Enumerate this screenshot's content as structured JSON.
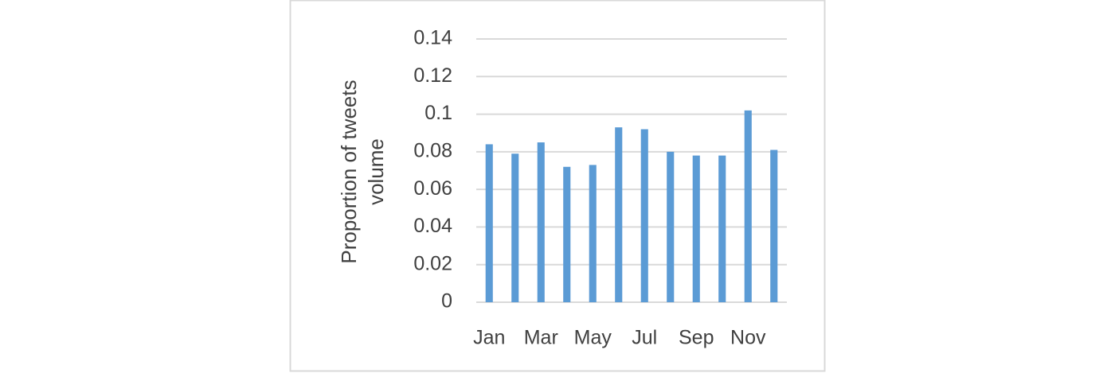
{
  "chart_data": {
    "type": "bar",
    "y_label": "Proportion of tweets volume",
    "categories": [
      "Jan",
      null,
      "Mar",
      null,
      "May",
      null,
      "Jul",
      null,
      "Sep",
      null,
      "Nov",
      null
    ],
    "values": [
      0.084,
      0.079,
      0.085,
      0.072,
      0.073,
      0.093,
      0.092,
      0.08,
      0.078,
      0.078,
      0.102,
      0.081
    ],
    "color": "#5b9bd5",
    "ylim": [
      0,
      0.14
    ],
    "yticks": [
      0,
      0.02,
      0.04,
      0.06,
      0.08,
      0.1,
      0.12,
      0.14
    ],
    "grid": true
  }
}
